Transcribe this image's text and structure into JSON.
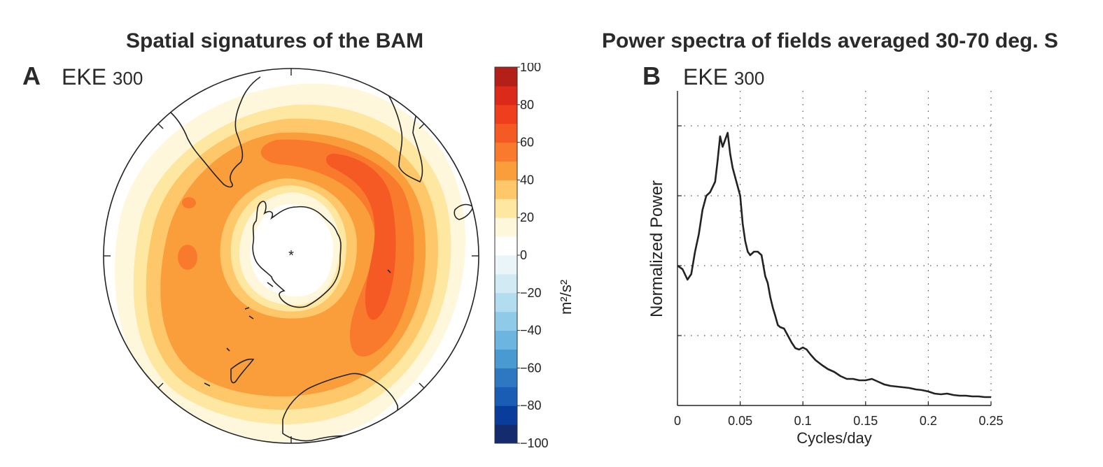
{
  "panel_a": {
    "title": "Spatial signatures of the BAM",
    "letter": "A",
    "label_main": "EKE",
    "label_sub": "300",
    "colorbar": {
      "unit_label": "m²/s²",
      "tick_labels": [
        "100",
        "80",
        "60",
        "40",
        "20",
        "0",
        "−20",
        "−40",
        "−60",
        "−80",
        "−100"
      ],
      "levels": [
        -100,
        -90,
        -80,
        -70,
        -60,
        -50,
        -40,
        -30,
        -20,
        -10,
        0,
        10,
        20,
        30,
        40,
        50,
        60,
        70,
        80,
        90,
        100
      ],
      "colors": [
        "#142b6e",
        "#0a3c9c",
        "#1a5db5",
        "#2e78c2",
        "#4a9ad2",
        "#6cb5e0",
        "#8fcbe8",
        "#b2dcef",
        "#d2eaf4",
        "#eaf5f9",
        "#ffffff",
        "#fff7dc",
        "#fee7a0",
        "#fdc76a",
        "#fa9e3b",
        "#f97a2c",
        "#f55a24",
        "#ef3e1e",
        "#dc2a1a",
        "#b41f17"
      ]
    }
  },
  "panel_b": {
    "title": "Power spectra of fields averaged 30-70 deg. S",
    "letter": "B",
    "label_main": "EKE",
    "label_sub": "300"
  },
  "chart_data": [
    {
      "type": "heatmap",
      "title": "Spatial signatures of the BAM",
      "projection": "south-polar-stereographic",
      "field_label": "EKE 300",
      "units": "m²/s²",
      "color_range": [
        -100,
        100
      ],
      "contour_interval": 10,
      "summary": "Positive EKE ring over the Southern Ocean; maxima of about 60-70 m²/s² in the Indian Ocean sector, ~50-60 over the South Atlantic and Pacific; near-zero over Antarctica"
    },
    {
      "type": "line",
      "title": "Power spectra of fields averaged 30-70 deg. S",
      "xlabel": "Cycles/day",
      "ylabel": "Normalized Power",
      "xlim": [
        0,
        0.25
      ],
      "ylim": [
        0,
        4.5
      ],
      "x_ticks": [
        "0",
        "0.05",
        "0.1",
        "0.15",
        "0.2",
        "0.25"
      ],
      "grid": true,
      "x": [
        0.0,
        0.004,
        0.008,
        0.011,
        0.014,
        0.017,
        0.02,
        0.023,
        0.026,
        0.03,
        0.032,
        0.034,
        0.036,
        0.038,
        0.04,
        0.042,
        0.044,
        0.047,
        0.05,
        0.052,
        0.054,
        0.056,
        0.058,
        0.061,
        0.064,
        0.067,
        0.07,
        0.072,
        0.074,
        0.076,
        0.078,
        0.08,
        0.082,
        0.085,
        0.088,
        0.091,
        0.094,
        0.097,
        0.1,
        0.103,
        0.106,
        0.11,
        0.115,
        0.12,
        0.125,
        0.13,
        0.135,
        0.14,
        0.145,
        0.15,
        0.155,
        0.16,
        0.165,
        0.17,
        0.175,
        0.18,
        0.185,
        0.19,
        0.195,
        0.2,
        0.205,
        0.21,
        0.215,
        0.22,
        0.225,
        0.23,
        0.235,
        0.24,
        0.245,
        0.25
      ],
      "y": [
        2.0,
        1.95,
        1.8,
        1.88,
        2.2,
        2.45,
        2.8,
        3.0,
        3.05,
        3.2,
        3.5,
        3.85,
        3.7,
        3.8,
        3.9,
        3.6,
        3.4,
        3.2,
        3.0,
        2.6,
        2.35,
        2.2,
        2.15,
        2.2,
        2.2,
        2.15,
        1.85,
        1.75,
        1.55,
        1.4,
        1.28,
        1.15,
        1.12,
        1.1,
        1.0,
        0.9,
        0.82,
        0.8,
        0.83,
        0.8,
        0.73,
        0.65,
        0.58,
        0.52,
        0.48,
        0.42,
        0.38,
        0.38,
        0.36,
        0.36,
        0.38,
        0.34,
        0.3,
        0.28,
        0.27,
        0.26,
        0.25,
        0.23,
        0.22,
        0.2,
        0.17,
        0.16,
        0.17,
        0.15,
        0.14,
        0.14,
        0.13,
        0.13,
        0.12,
        0.12
      ]
    }
  ]
}
